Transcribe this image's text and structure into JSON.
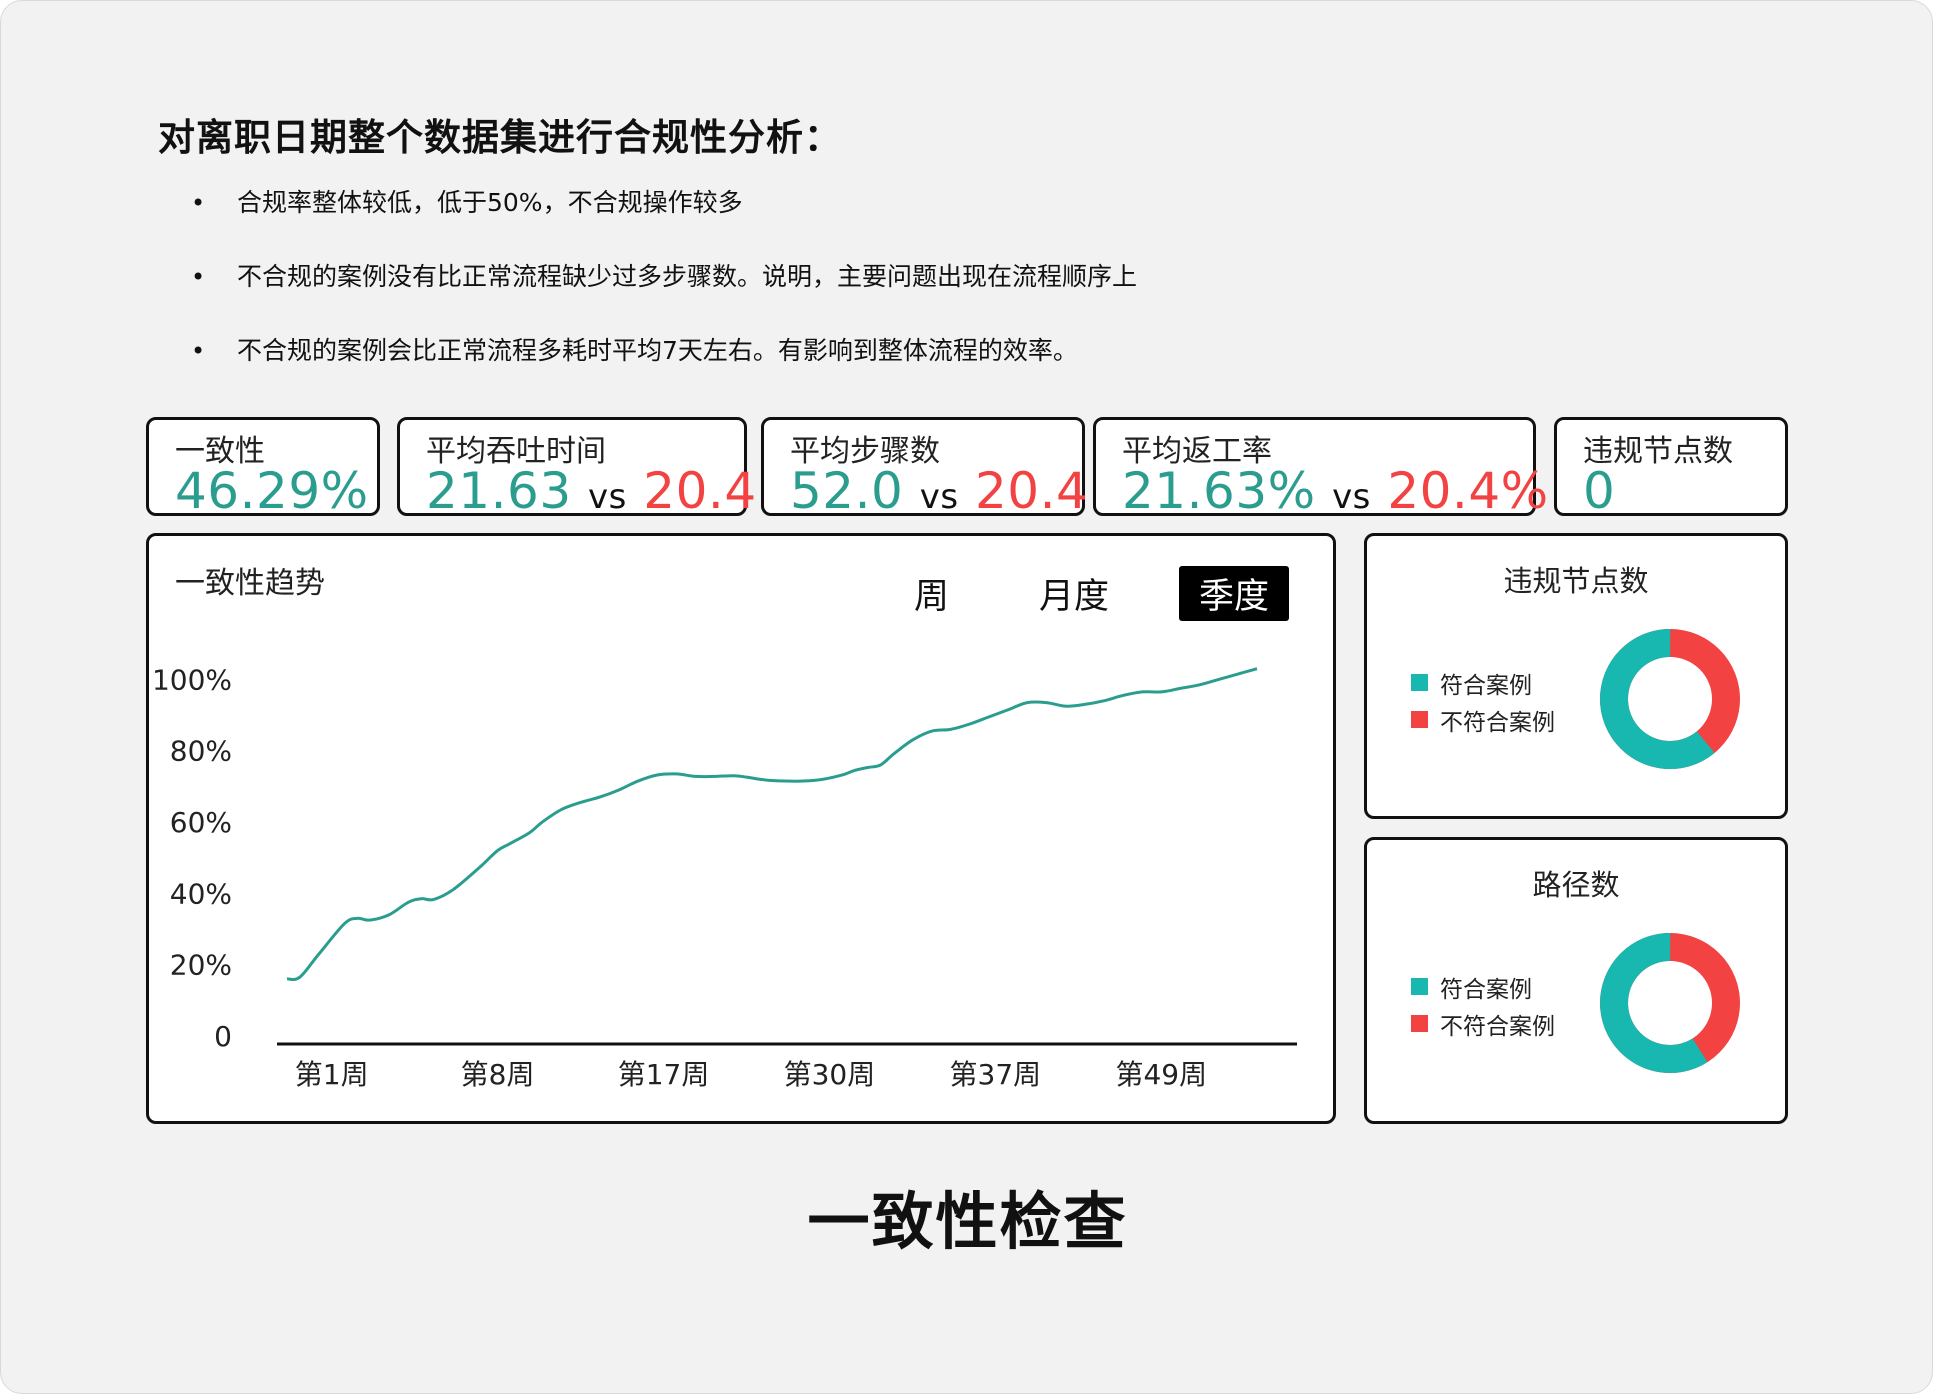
{
  "heading": "对离职日期整个数据集进行合规性分析：",
  "bullets": [
    "合规率整体较低，低于50%，不合规操作较多",
    "不合规的案例没有比正常流程缺少过多步骤数。说明，主要问题出现在流程顺序上",
    "不合规的案例会比正常流程多耗时平均7天左右。有影响到整体流程的效率。"
  ],
  "bullet_symbol": "•",
  "colors": {
    "teal": "#2a9d8f",
    "donut_teal": "#18b7b0",
    "red": "#f24242"
  },
  "kpis": [
    {
      "label": "一致性",
      "value": "46.29%"
    },
    {
      "label": "平均吞吐时间",
      "value": "21.63",
      "vs": "vs",
      "compare": "20.4"
    },
    {
      "label": "平均步骤数",
      "value": "52.0",
      "vs": "vs",
      "compare": "20.4"
    },
    {
      "label": "平均返工率",
      "value": "21.63%",
      "vs": "vs",
      "compare": "20.4%"
    },
    {
      "label": "违规节点数",
      "value": "0"
    }
  ],
  "trend": {
    "title": "一致性趋势",
    "tabs": [
      "周",
      "月度",
      "季度"
    ],
    "active_tab": "季度"
  },
  "chart_data": {
    "type": "line",
    "title": "一致性趋势",
    "xlabel": "",
    "ylabel": "",
    "y_ticks": [
      "0",
      "20%",
      "40%",
      "60%",
      "80%",
      "100%"
    ],
    "ylim": [
      0,
      100
    ],
    "x_ticks": [
      "第1周",
      "第8周",
      "第17周",
      "第30周",
      "第37周",
      "第49周"
    ],
    "grid": false,
    "color": "#2a9d8f",
    "points": [
      [
        0,
        16
      ],
      [
        2,
        16.5
      ],
      [
        5,
        23
      ],
      [
        9,
        31.5
      ],
      [
        11,
        33
      ],
      [
        13,
        32.5
      ],
      [
        16,
        34
      ],
      [
        19,
        37.5
      ],
      [
        21,
        38.5
      ],
      [
        23,
        38.3
      ],
      [
        26,
        41
      ],
      [
        30,
        47
      ],
      [
        33,
        52
      ],
      [
        35,
        54
      ],
      [
        38,
        57
      ],
      [
        40,
        60
      ],
      [
        43,
        63.5
      ],
      [
        46,
        65.5
      ],
      [
        49,
        67
      ],
      [
        52,
        69
      ],
      [
        55,
        71.5
      ],
      [
        58,
        73.2
      ],
      [
        61,
        73.5
      ],
      [
        64,
        72.8
      ],
      [
        67,
        72.8
      ],
      [
        70,
        73
      ],
      [
        72,
        72.6
      ],
      [
        75,
        71.8
      ],
      [
        78,
        71.5
      ],
      [
        81,
        71.5
      ],
      [
        84,
        72
      ],
      [
        87,
        73.2
      ],
      [
        89,
        74.5
      ],
      [
        91,
        75.3
      ],
      [
        93,
        76
      ],
      [
        95,
        79
      ],
      [
        98,
        83
      ],
      [
        101,
        85.5
      ],
      [
        104,
        86
      ],
      [
        107,
        87.5
      ],
      [
        110,
        89.5
      ],
      [
        113,
        91.5
      ],
      [
        116,
        93.5
      ],
      [
        119,
        93.5
      ],
      [
        122,
        92.5
      ],
      [
        125,
        93
      ],
      [
        128,
        94
      ],
      [
        131,
        95.5
      ],
      [
        134,
        96.5
      ],
      [
        137,
        96.5
      ],
      [
        140,
        97.5
      ],
      [
        143,
        98.5
      ],
      [
        146,
        100
      ],
      [
        149,
        101.5
      ],
      [
        152,
        103
      ]
    ],
    "x_tick_positions": [
      7,
      33,
      59,
      85,
      111,
      137
    ],
    "x_range": [
      0,
      152
    ]
  },
  "donut_violations": {
    "title": "违规节点数",
    "legend": [
      "符合案例",
      "不符合案例"
    ],
    "share_compliant": 0.61
  },
  "donut_paths": {
    "title": "路径数",
    "legend": [
      "符合案例",
      "不符合案例"
    ],
    "share_compliant": 0.59
  },
  "footer_title": "一致性检查"
}
